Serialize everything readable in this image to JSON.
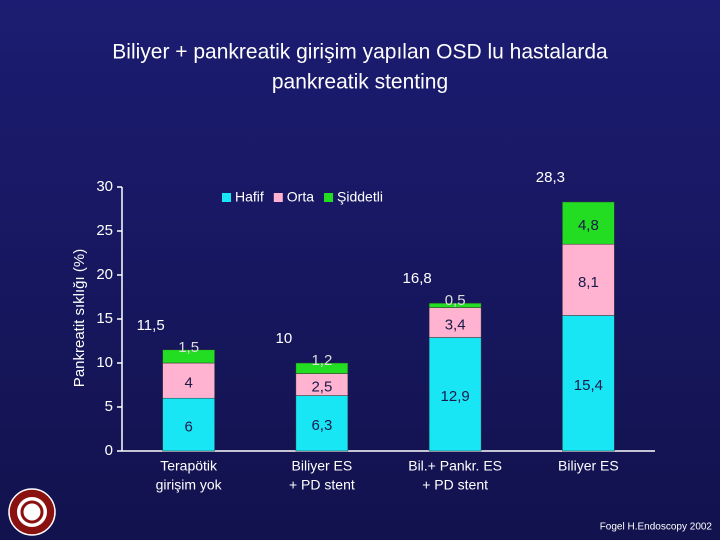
{
  "chart_data": {
    "type": "stacked_bar",
    "title": [
      "Biliyer + pankreatik girişim yapılan OSD lu hastalarda",
      "pankreatik stenting"
    ],
    "ylabel": "Pankreatit sıklığı (%)",
    "categories": [
      [
        "Terapötik",
        "girişim yok"
      ],
      [
        "Biliyer ES",
        "+ PD stent"
      ],
      [
        "Bil.+ Pankr. ES",
        "+ PD stent"
      ],
      [
        "Biliyer ES"
      ]
    ],
    "series": [
      {
        "name": "Hafif",
        "color": "#19e6f5",
        "values": [
          6,
          6.3,
          12.9,
          15.4
        ],
        "value_labels": [
          "6",
          "6,3",
          "12,9",
          "15,4"
        ]
      },
      {
        "name": "Orta",
        "color": "#ffb3d1",
        "values": [
          4,
          2.5,
          3.4,
          8.1
        ],
        "value_labels": [
          "4",
          "2,5",
          "3,4",
          "8,1"
        ]
      },
      {
        "name": "Şiddetli",
        "color": "#22dd22",
        "values": [
          1.5,
          1.2,
          0.5,
          4.8
        ],
        "value_labels": [
          "1,5",
          "1,2",
          "0,5",
          "4,8"
        ]
      }
    ],
    "totals": {
      "values": [
        11.5,
        10,
        16.8,
        28.3
      ],
      "value_labels": [
        "11,5",
        "10",
        "16,8",
        "28,3"
      ]
    },
    "ylim": [
      0,
      30
    ],
    "yticks": [
      0,
      5,
      10,
      15,
      20,
      25,
      30
    ],
    "legend": "top",
    "source": "Fogel H.Endoscopy 2002"
  }
}
